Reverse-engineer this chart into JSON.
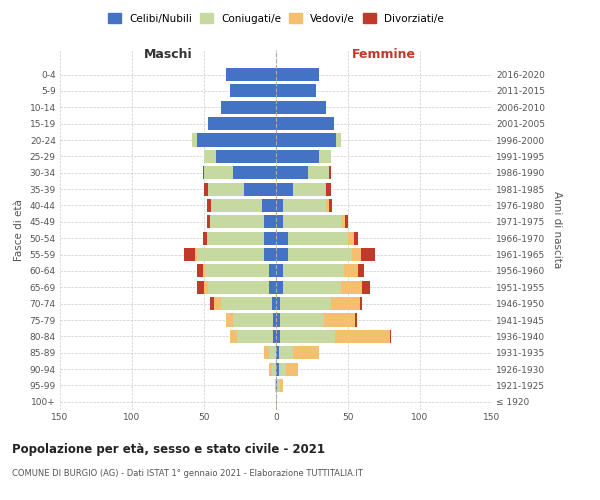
{
  "age_groups": [
    "100+",
    "95-99",
    "90-94",
    "85-89",
    "80-84",
    "75-79",
    "70-74",
    "65-69",
    "60-64",
    "55-59",
    "50-54",
    "45-49",
    "40-44",
    "35-39",
    "30-34",
    "25-29",
    "20-24",
    "15-19",
    "10-14",
    "5-9",
    "0-4"
  ],
  "birth_years": [
    "≤ 1920",
    "1921-1925",
    "1926-1930",
    "1931-1935",
    "1936-1940",
    "1941-1945",
    "1946-1950",
    "1951-1955",
    "1956-1960",
    "1961-1965",
    "1966-1970",
    "1971-1975",
    "1976-1980",
    "1981-1985",
    "1986-1990",
    "1991-1995",
    "1996-2000",
    "2001-2005",
    "2006-2010",
    "2011-2015",
    "2016-2020"
  ],
  "male": {
    "celibe": [
      0,
      0,
      0,
      0,
      2,
      2,
      3,
      5,
      5,
      8,
      8,
      8,
      10,
      22,
      30,
      42,
      55,
      47,
      38,
      32,
      35
    ],
    "coniugato": [
      0,
      1,
      3,
      5,
      25,
      28,
      35,
      42,
      44,
      47,
      40,
      38,
      35,
      25,
      20,
      8,
      3,
      0,
      0,
      0,
      0
    ],
    "vedovo": [
      0,
      0,
      2,
      3,
      5,
      5,
      5,
      3,
      2,
      1,
      0,
      0,
      0,
      0,
      0,
      0,
      0,
      0,
      0,
      0,
      0
    ],
    "divorziato": [
      0,
      0,
      0,
      0,
      0,
      0,
      3,
      5,
      4,
      8,
      3,
      2,
      3,
      3,
      1,
      0,
      0,
      0,
      0,
      0,
      0
    ]
  },
  "female": {
    "nubile": [
      0,
      1,
      2,
      2,
      3,
      3,
      3,
      5,
      5,
      8,
      8,
      5,
      5,
      12,
      22,
      30,
      42,
      40,
      35,
      28,
      30
    ],
    "coniugata": [
      0,
      2,
      5,
      10,
      38,
      30,
      35,
      40,
      42,
      45,
      42,
      40,
      30,
      22,
      15,
      8,
      3,
      0,
      0,
      0,
      0
    ],
    "vedova": [
      1,
      2,
      8,
      18,
      38,
      22,
      20,
      15,
      10,
      6,
      4,
      3,
      2,
      1,
      0,
      0,
      0,
      0,
      0,
      0,
      0
    ],
    "divorziata": [
      0,
      0,
      0,
      0,
      1,
      1,
      2,
      5,
      4,
      10,
      3,
      2,
      2,
      3,
      1,
      0,
      0,
      0,
      0,
      0,
      0
    ]
  },
  "colors": {
    "celibe": "#4472c4",
    "coniugato": "#c5d9a0",
    "vedovo": "#f4c06f",
    "divorziato": "#c0392b"
  },
  "xlim": 150,
  "title": "Popolazione per età, sesso e stato civile - 2021",
  "subtitle": "COMUNE DI BURGIO (AG) - Dati ISTAT 1° gennaio 2021 - Elaborazione TUTTITALIA.IT",
  "ylabel_left": "Fasce di età",
  "ylabel_right": "Anni di nascita",
  "xlabel_male": "Maschi",
  "xlabel_female": "Femmine",
  "legend_labels": [
    "Celibi/Nubili",
    "Coniugati/e",
    "Vedovi/e",
    "Divorziati/e"
  ]
}
